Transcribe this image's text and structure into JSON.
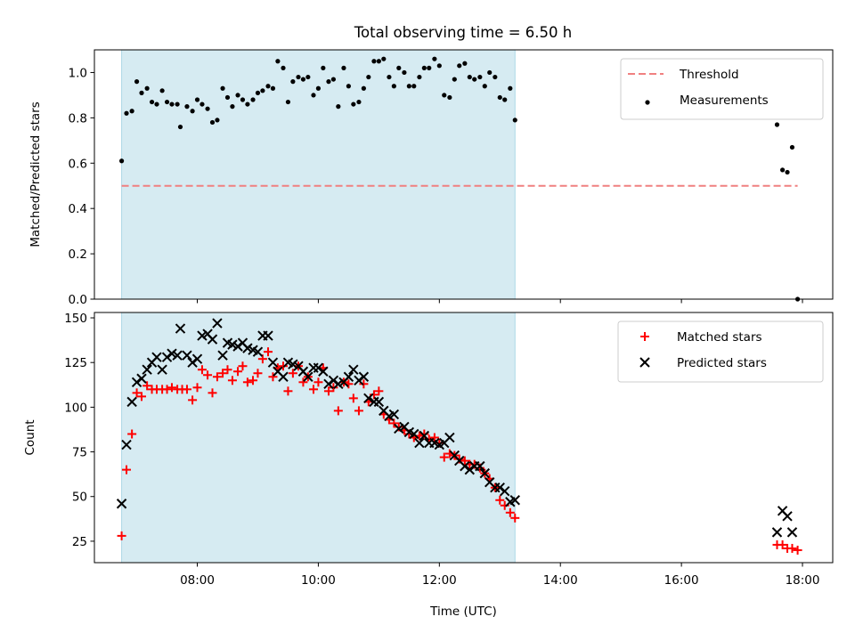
{
  "chart_data": {
    "title": "Total observing time = 6.50 h",
    "type": "scatter",
    "xlabel": "Time (UTC)",
    "x_unit": "hours (UTC)",
    "xlim": [
      6.3,
      18.5
    ],
    "xticks": [
      {
        "v": 8,
        "label": "08:00"
      },
      {
        "v": 10,
        "label": "10:00"
      },
      {
        "v": 12,
        "label": "12:00"
      },
      {
        "v": 14,
        "label": "14:00"
      },
      {
        "v": 16,
        "label": "16:00"
      },
      {
        "v": 18,
        "label": "18:00"
      }
    ],
    "shaded_interval": {
      "x0": 6.75,
      "x1": 13.25,
      "color": "#add8e6"
    },
    "top": {
      "ylabel": "Matched/Predicted stars",
      "ylim": [
        0,
        1.1
      ],
      "yticks": [
        {
          "v": 0.0,
          "label": "0.0"
        },
        {
          "v": 0.2,
          "label": "0.2"
        },
        {
          "v": 0.4,
          "label": "0.4"
        },
        {
          "v": 0.6,
          "label": "0.6"
        },
        {
          "v": 0.8,
          "label": "0.8"
        },
        {
          "v": 1.0,
          "label": "1.0"
        }
      ],
      "legend": [
        {
          "label": "Threshold",
          "style": "dashed-line",
          "color": "#f08080"
        },
        {
          "label": "Measurements",
          "style": "dot",
          "color": "#000000"
        }
      ],
      "threshold": {
        "y": 0.5,
        "x0": 6.75,
        "x1": 17.92,
        "color": "#f08080"
      },
      "measurements": [
        [
          6.75,
          0.61
        ],
        [
          6.83,
          0.82
        ],
        [
          6.92,
          0.83
        ],
        [
          7.0,
          0.96
        ],
        [
          7.08,
          0.91
        ],
        [
          7.17,
          0.93
        ],
        [
          7.25,
          0.87
        ],
        [
          7.33,
          0.86
        ],
        [
          7.42,
          0.92
        ],
        [
          7.5,
          0.87
        ],
        [
          7.58,
          0.86
        ],
        [
          7.67,
          0.86
        ],
        [
          7.72,
          0.76
        ],
        [
          7.83,
          0.85
        ],
        [
          7.92,
          0.83
        ],
        [
          8.0,
          0.88
        ],
        [
          8.08,
          0.86
        ],
        [
          8.17,
          0.84
        ],
        [
          8.25,
          0.78
        ],
        [
          8.33,
          0.79
        ],
        [
          8.42,
          0.93
        ],
        [
          8.5,
          0.89
        ],
        [
          8.58,
          0.85
        ],
        [
          8.67,
          0.9
        ],
        [
          8.75,
          0.88
        ],
        [
          8.83,
          0.86
        ],
        [
          8.92,
          0.88
        ],
        [
          9.0,
          0.91
        ],
        [
          9.08,
          0.92
        ],
        [
          9.17,
          0.94
        ],
        [
          9.25,
          0.93
        ],
        [
          9.33,
          1.05
        ],
        [
          9.42,
          1.02
        ],
        [
          9.5,
          0.87
        ],
        [
          9.58,
          0.96
        ],
        [
          9.67,
          0.98
        ],
        [
          9.75,
          0.97
        ],
        [
          9.83,
          0.98
        ],
        [
          9.92,
          0.9
        ],
        [
          10.0,
          0.93
        ],
        [
          10.08,
          1.02
        ],
        [
          10.17,
          0.96
        ],
        [
          10.25,
          0.97
        ],
        [
          10.33,
          0.85
        ],
        [
          10.42,
          1.02
        ],
        [
          10.5,
          0.94
        ],
        [
          10.58,
          0.86
        ],
        [
          10.67,
          0.87
        ],
        [
          10.75,
          0.93
        ],
        [
          10.83,
          0.98
        ],
        [
          10.92,
          1.05
        ],
        [
          11.0,
          1.05
        ],
        [
          11.08,
          1.06
        ],
        [
          11.17,
          0.98
        ],
        [
          11.25,
          0.94
        ],
        [
          11.33,
          1.02
        ],
        [
          11.42,
          1.0
        ],
        [
          11.5,
          0.94
        ],
        [
          11.58,
          0.94
        ],
        [
          11.67,
          0.98
        ],
        [
          11.75,
          1.02
        ],
        [
          11.83,
          1.02
        ],
        [
          11.92,
          1.06
        ],
        [
          12.0,
          1.03
        ],
        [
          12.08,
          0.9
        ],
        [
          12.17,
          0.89
        ],
        [
          12.25,
          0.97
        ],
        [
          12.33,
          1.03
        ],
        [
          12.42,
          1.04
        ],
        [
          12.5,
          0.98
        ],
        [
          12.58,
          0.97
        ],
        [
          12.67,
          0.98
        ],
        [
          12.75,
          0.94
        ],
        [
          12.83,
          1.0
        ],
        [
          12.92,
          0.98
        ],
        [
          13.0,
          0.89
        ],
        [
          13.08,
          0.88
        ],
        [
          13.17,
          0.93
        ],
        [
          13.25,
          0.79
        ],
        [
          17.58,
          0.77
        ],
        [
          17.67,
          0.57
        ],
        [
          17.75,
          0.56
        ],
        [
          17.83,
          0.67
        ],
        [
          17.92,
          0.0
        ]
      ]
    },
    "bottom": {
      "ylabel": "Count",
      "ylim": [
        13,
        153
      ],
      "yticks": [
        {
          "v": 25,
          "label": "25"
        },
        {
          "v": 50,
          "label": "50"
        },
        {
          "v": 75,
          "label": "75"
        },
        {
          "v": 100,
          "label": "100"
        },
        {
          "v": 125,
          "label": "125"
        },
        {
          "v": 150,
          "label": "150"
        }
      ],
      "legend": [
        {
          "label": "Matched stars",
          "style": "plus",
          "color": "#ff0000"
        },
        {
          "label": "Predicted stars",
          "style": "cross",
          "color": "#000000"
        }
      ],
      "series": [
        {
          "name": "Matched stars",
          "marker": "plus",
          "color": "#ff0000",
          "points": [
            [
              6.75,
              28
            ],
            [
              6.83,
              65
            ],
            [
              6.92,
              85
            ],
            [
              7.0,
              108
            ],
            [
              7.08,
              106
            ],
            [
              7.17,
              112
            ],
            [
              7.25,
              110
            ],
            [
              7.33,
              110
            ],
            [
              7.42,
              110
            ],
            [
              7.5,
              110
            ],
            [
              7.58,
              111
            ],
            [
              7.67,
              110
            ],
            [
              7.75,
              110
            ],
            [
              7.83,
              110
            ],
            [
              7.92,
              104
            ],
            [
              8.0,
              111
            ],
            [
              8.08,
              121
            ],
            [
              8.17,
              118
            ],
            [
              8.25,
              108
            ],
            [
              8.33,
              117
            ],
            [
              8.42,
              119
            ],
            [
              8.5,
              121
            ],
            [
              8.58,
              115
            ],
            [
              8.67,
              120
            ],
            [
              8.75,
              123
            ],
            [
              8.83,
              114
            ],
            [
              8.92,
              115
            ],
            [
              9.0,
              119
            ],
            [
              9.08,
              127
            ],
            [
              9.17,
              131
            ],
            [
              9.25,
              117
            ],
            [
              9.33,
              122
            ],
            [
              9.42,
              123
            ],
            [
              9.5,
              109
            ],
            [
              9.58,
              119
            ],
            [
              9.67,
              123
            ],
            [
              9.75,
              114
            ],
            [
              9.83,
              117
            ],
            [
              9.92,
              110
            ],
            [
              10.0,
              114
            ],
            [
              10.08,
              122
            ],
            [
              10.17,
              109
            ],
            [
              10.25,
              111
            ],
            [
              10.33,
              98
            ],
            [
              10.42,
              114
            ],
            [
              10.5,
              113
            ],
            [
              10.58,
              105
            ],
            [
              10.67,
              98
            ],
            [
              10.75,
              113
            ],
            [
              10.83,
              103
            ],
            [
              10.92,
              107
            ],
            [
              11.0,
              109
            ],
            [
              11.08,
              96
            ],
            [
              11.17,
              93
            ],
            [
              11.25,
              91
            ],
            [
              11.33,
              89
            ],
            [
              11.42,
              87
            ],
            [
              11.5,
              85
            ],
            [
              11.58,
              83
            ],
            [
              11.67,
              84
            ],
            [
              11.75,
              85
            ],
            [
              11.83,
              82
            ],
            [
              11.92,
              83
            ],
            [
              12.0,
              80
            ],
            [
              12.08,
              72
            ],
            [
              12.17,
              74
            ],
            [
              12.25,
              73
            ],
            [
              12.33,
              71
            ],
            [
              12.42,
              70
            ],
            [
              12.5,
              68
            ],
            [
              12.58,
              68
            ],
            [
              12.67,
              66
            ],
            [
              12.75,
              63
            ],
            [
              12.83,
              60
            ],
            [
              12.92,
              55
            ],
            [
              13.0,
              48
            ],
            [
              13.08,
              45
            ],
            [
              13.17,
              41
            ],
            [
              13.25,
              38
            ],
            [
              17.58,
              23
            ],
            [
              17.67,
              23
            ],
            [
              17.75,
              21
            ],
            [
              17.83,
              21
            ],
            [
              17.92,
              20
            ]
          ]
        },
        {
          "name": "Predicted stars",
          "marker": "cross",
          "color": "#000000",
          "points": [
            [
              6.75,
              46
            ],
            [
              6.83,
              79
            ],
            [
              6.92,
              103
            ],
            [
              7.0,
              114
            ],
            [
              7.08,
              116
            ],
            [
              7.17,
              121
            ],
            [
              7.25,
              125
            ],
            [
              7.33,
              128
            ],
            [
              7.42,
              121
            ],
            [
              7.5,
              128
            ],
            [
              7.58,
              130
            ],
            [
              7.67,
              129
            ],
            [
              7.72,
              144
            ],
            [
              7.83,
              129
            ],
            [
              7.92,
              125
            ],
            [
              8.0,
              127
            ],
            [
              8.08,
              140
            ],
            [
              8.17,
              141
            ],
            [
              8.25,
              138
            ],
            [
              8.33,
              147
            ],
            [
              8.42,
              129
            ],
            [
              8.5,
              136
            ],
            [
              8.58,
              135
            ],
            [
              8.67,
              134
            ],
            [
              8.75,
              136
            ],
            [
              8.83,
              133
            ],
            [
              8.92,
              132
            ],
            [
              9.0,
              131
            ],
            [
              9.08,
              140
            ],
            [
              9.17,
              140
            ],
            [
              9.25,
              125
            ],
            [
              9.33,
              120
            ],
            [
              9.42,
              117
            ],
            [
              9.5,
              125
            ],
            [
              9.58,
              124
            ],
            [
              9.67,
              123
            ],
            [
              9.75,
              120
            ],
            [
              9.83,
              117
            ],
            [
              9.92,
              122
            ],
            [
              10.0,
              122
            ],
            [
              10.08,
              120
            ],
            [
              10.17,
              113
            ],
            [
              10.25,
              115
            ],
            [
              10.33,
              113
            ],
            [
              10.42,
              114
            ],
            [
              10.5,
              117
            ],
            [
              10.58,
              121
            ],
            [
              10.67,
              115
            ],
            [
              10.75,
              117
            ],
            [
              10.83,
              105
            ],
            [
              10.92,
              103
            ],
            [
              11.0,
              103
            ],
            [
              11.08,
              98
            ],
            [
              11.17,
              95
            ],
            [
              11.25,
              96
            ],
            [
              11.33,
              88
            ],
            [
              11.42,
              89
            ],
            [
              11.5,
              86
            ],
            [
              11.58,
              85
            ],
            [
              11.67,
              80
            ],
            [
              11.75,
              84
            ],
            [
              11.83,
              80
            ],
            [
              11.92,
              80
            ],
            [
              12.0,
              79
            ],
            [
              12.08,
              80
            ],
            [
              12.17,
              83
            ],
            [
              12.25,
              73
            ],
            [
              12.33,
              70
            ],
            [
              12.42,
              67
            ],
            [
              12.5,
              65
            ],
            [
              12.58,
              67
            ],
            [
              12.67,
              67
            ],
            [
              12.75,
              63
            ],
            [
              12.83,
              58
            ],
            [
              12.92,
              55
            ],
            [
              13.0,
              55
            ],
            [
              13.08,
              53
            ],
            [
              13.17,
              47
            ],
            [
              13.25,
              48
            ],
            [
              17.58,
              30
            ],
            [
              17.67,
              42
            ],
            [
              17.75,
              39
            ],
            [
              17.83,
              30
            ]
          ]
        }
      ]
    }
  }
}
